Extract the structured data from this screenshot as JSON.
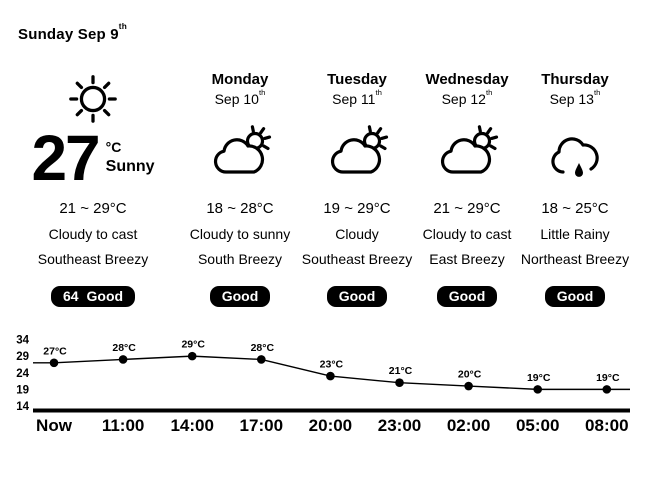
{
  "colors": {
    "background": "#ffffff",
    "foreground": "#000000",
    "badge_bg": "#000000",
    "badge_fg": "#ffffff"
  },
  "header": {
    "title": "Sunday Sep 9",
    "title_suffix": "th"
  },
  "today": {
    "icon": "sun-icon",
    "temp": "27",
    "unit": "°C",
    "condition": "Sunny",
    "range": "21 ~ 29°C",
    "forecast": "Cloudy to cast",
    "wind": "Southeast Breezy",
    "aqi_value": "64",
    "aqi_label": "Good"
  },
  "days": [
    {
      "name": "Monday",
      "date": "Sep 10",
      "date_suffix": "th",
      "icon": "cloud-sun-icon",
      "range": "18 ~ 28°C",
      "forecast": "Cloudy to sunny",
      "wind": "South Breezy",
      "aqi_label": "Good"
    },
    {
      "name": "Tuesday",
      "date": "Sep 11",
      "date_suffix": "th",
      "icon": "cloud-sun-icon",
      "range": "19 ~ 29°C",
      "forecast": "Cloudy",
      "wind": "Southeast Breezy",
      "aqi_label": "Good"
    },
    {
      "name": "Wednesday",
      "date": "Sep 12",
      "date_suffix": "th",
      "icon": "cloud-sun-icon",
      "range": "21 ~ 29°C",
      "forecast": "Cloudy to cast",
      "wind": "East Breezy",
      "aqi_label": "Good"
    },
    {
      "name": "Thursday",
      "date": "Sep 13",
      "date_suffix": "th",
      "icon": "cloud-rain-icon",
      "range": "18 ~ 25°C",
      "forecast": "Little Rainy",
      "wind": "Northeast Breezy",
      "aqi_label": "Good"
    }
  ],
  "chart_data": {
    "type": "line",
    "x": [
      "Now",
      "11:00",
      "14:00",
      "17:00",
      "20:00",
      "23:00",
      "02:00",
      "05:00",
      "08:00"
    ],
    "values": [
      27,
      28,
      29,
      28,
      23,
      21,
      20,
      19,
      19
    ],
    "point_labels": [
      "27°C",
      "28°C",
      "29°C",
      "28°C",
      "23°C",
      "21°C",
      "20°C",
      "19°C",
      "19°C"
    ],
    "yticks": [
      34,
      29,
      24,
      19,
      14
    ],
    "ylim": [
      14,
      34
    ],
    "xlabel": "",
    "ylabel": "",
    "grid": false,
    "legend": false,
    "line_color": "#000000",
    "marker_color": "#000000",
    "marker": "circle"
  }
}
